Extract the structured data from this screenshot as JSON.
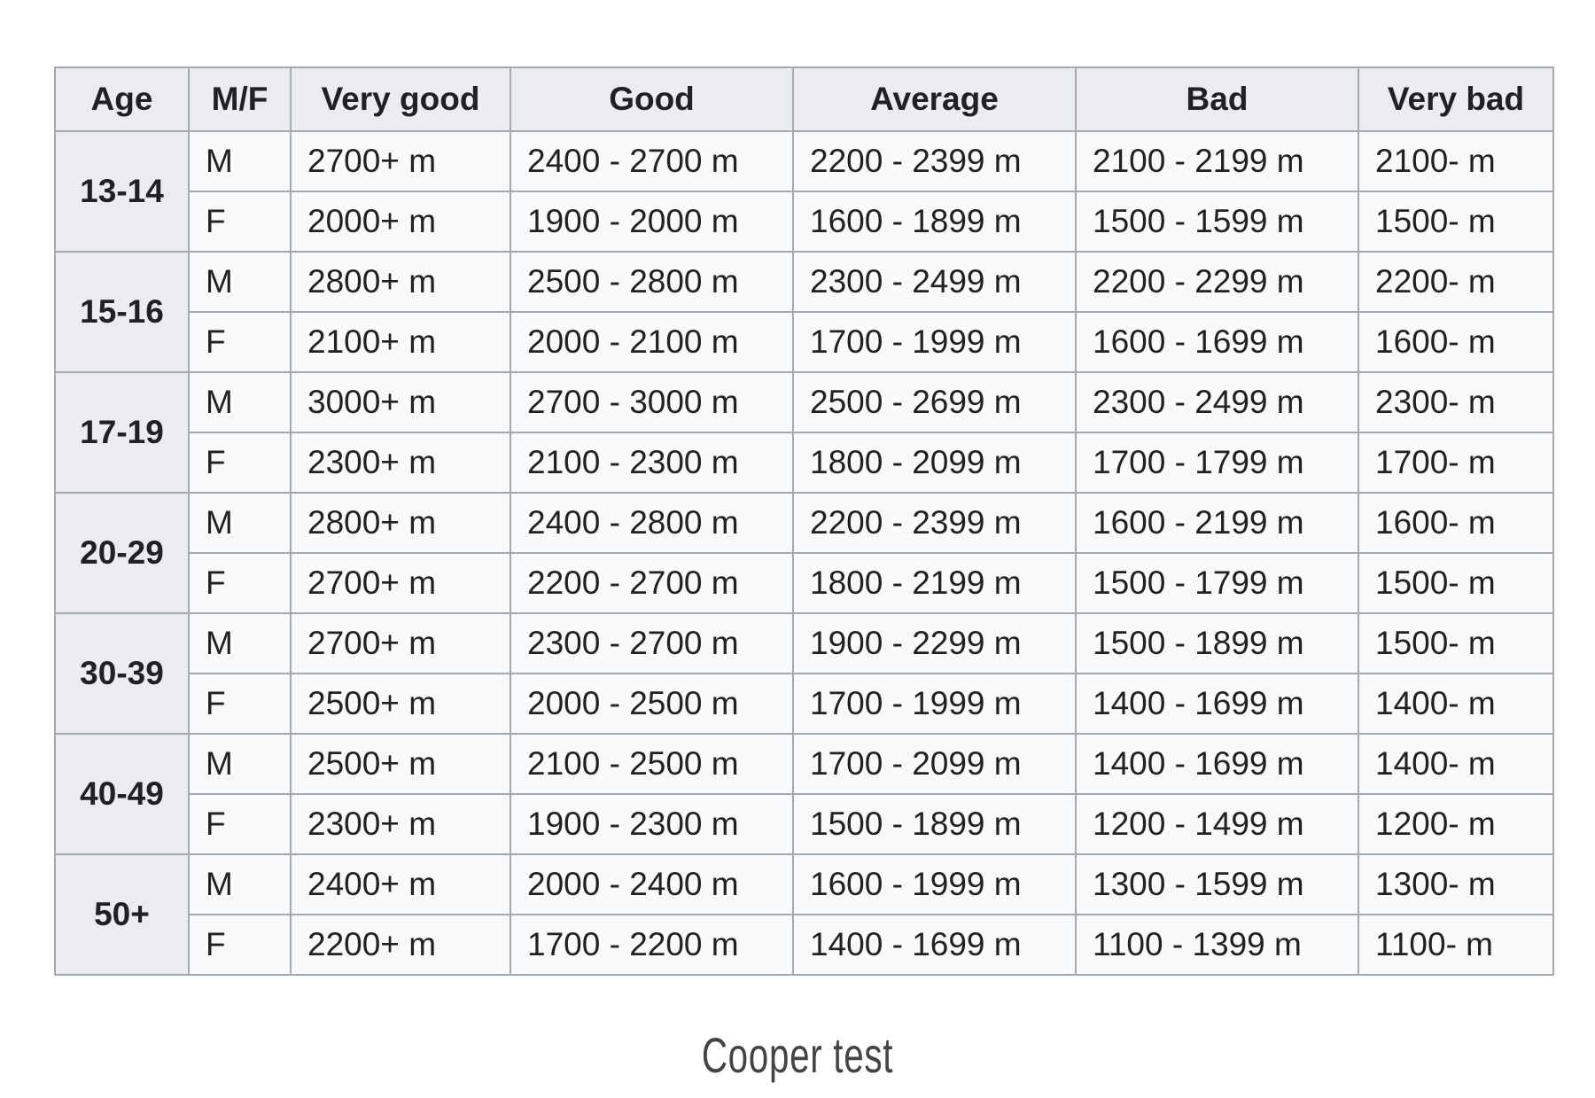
{
  "chart_data": {
    "type": "table",
    "caption": "Cooper test",
    "columns": [
      "Age",
      "M/F",
      "Very good",
      "Good",
      "Average",
      "Bad",
      "Very bad"
    ],
    "groups": [
      {
        "age": "13-14",
        "rows": [
          {
            "sex": "M",
            "values": [
              "2700+ m",
              "2400 - 2700 m",
              "2200 - 2399 m",
              "2100 - 2199 m",
              "2100- m"
            ]
          },
          {
            "sex": "F",
            "values": [
              "2000+ m",
              "1900 - 2000 m",
              "1600 - 1899 m",
              "1500 - 1599 m",
              "1500- m"
            ]
          }
        ]
      },
      {
        "age": "15-16",
        "rows": [
          {
            "sex": "M",
            "values": [
              "2800+ m",
              "2500 - 2800 m",
              "2300 - 2499 m",
              "2200 - 2299 m",
              "2200- m"
            ]
          },
          {
            "sex": "F",
            "values": [
              "2100+ m",
              "2000 - 2100 m",
              "1700 - 1999 m",
              "1600 - 1699 m",
              "1600- m"
            ]
          }
        ]
      },
      {
        "age": "17-19",
        "rows": [
          {
            "sex": "M",
            "values": [
              "3000+ m",
              "2700 - 3000 m",
              "2500 - 2699 m",
              "2300 - 2499 m",
              "2300- m"
            ]
          },
          {
            "sex": "F",
            "values": [
              "2300+ m",
              "2100 - 2300 m",
              "1800 - 2099 m",
              "1700 - 1799 m",
              "1700- m"
            ]
          }
        ]
      },
      {
        "age": "20-29",
        "rows": [
          {
            "sex": "M",
            "values": [
              "2800+ m",
              "2400 - 2800 m",
              "2200 - 2399 m",
              "1600 - 2199 m",
              "1600- m"
            ]
          },
          {
            "sex": "F",
            "values": [
              "2700+ m",
              "2200 - 2700 m",
              "1800 - 2199 m",
              "1500 - 1799 m",
              "1500- m"
            ]
          }
        ]
      },
      {
        "age": "30-39",
        "rows": [
          {
            "sex": "M",
            "values": [
              "2700+ m",
              "2300 - 2700 m",
              "1900 - 2299 m",
              "1500 - 1899 m",
              "1500- m"
            ]
          },
          {
            "sex": "F",
            "values": [
              "2500+ m",
              "2000 - 2500 m",
              "1700 - 1999 m",
              "1400 - 1699 m",
              "1400- m"
            ]
          }
        ]
      },
      {
        "age": "40-49",
        "rows": [
          {
            "sex": "M",
            "values": [
              "2500+ m",
              "2100 - 2500 m",
              "1700 - 2099 m",
              "1400 - 1699 m",
              "1400- m"
            ]
          },
          {
            "sex": "F",
            "values": [
              "2300+ m",
              "1900 - 2300 m",
              "1500 - 1899 m",
              "1200 - 1499 m",
              "1200- m"
            ]
          }
        ]
      },
      {
        "age": "50+",
        "rows": [
          {
            "sex": "M",
            "values": [
              "2400+ m",
              "2000 - 2400 m",
              "1600 - 1999 m",
              "1300 - 1599 m",
              "1300- m"
            ]
          },
          {
            "sex": "F",
            "values": [
              "2200+ m",
              "1700 - 2200 m",
              "1400 - 1699 m",
              "1100 - 1399 m",
              "1100- m"
            ]
          }
        ]
      }
    ]
  }
}
